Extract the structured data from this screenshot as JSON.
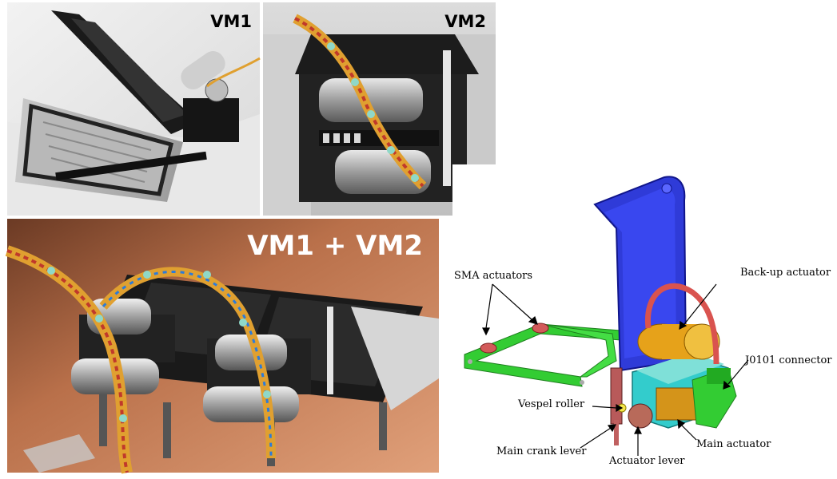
{
  "photos": {
    "vm1_label": "VM1",
    "vm2_label": "VM2",
    "combined_label": "VM1 + VM2"
  },
  "diagram": {
    "callouts": {
      "sma_actuators": "SMA actuators",
      "backup_actuator": "Back-up actuator",
      "j0101_connector": "J0101 connector",
      "vespel_roller": "Vespel roller",
      "main_crank_lever": "Main crank lever",
      "actuator_lever": "Actuator lever",
      "main_actuator": "Main actuator"
    }
  },
  "colors": {
    "mirror_blue": "#2f3bd8",
    "frame_green": "#33cc33",
    "body_cyan": "#33cccc",
    "actuator_gold": "#e6a21a",
    "cable_red": "#d9534f",
    "copper_plate": "#b9704a"
  }
}
